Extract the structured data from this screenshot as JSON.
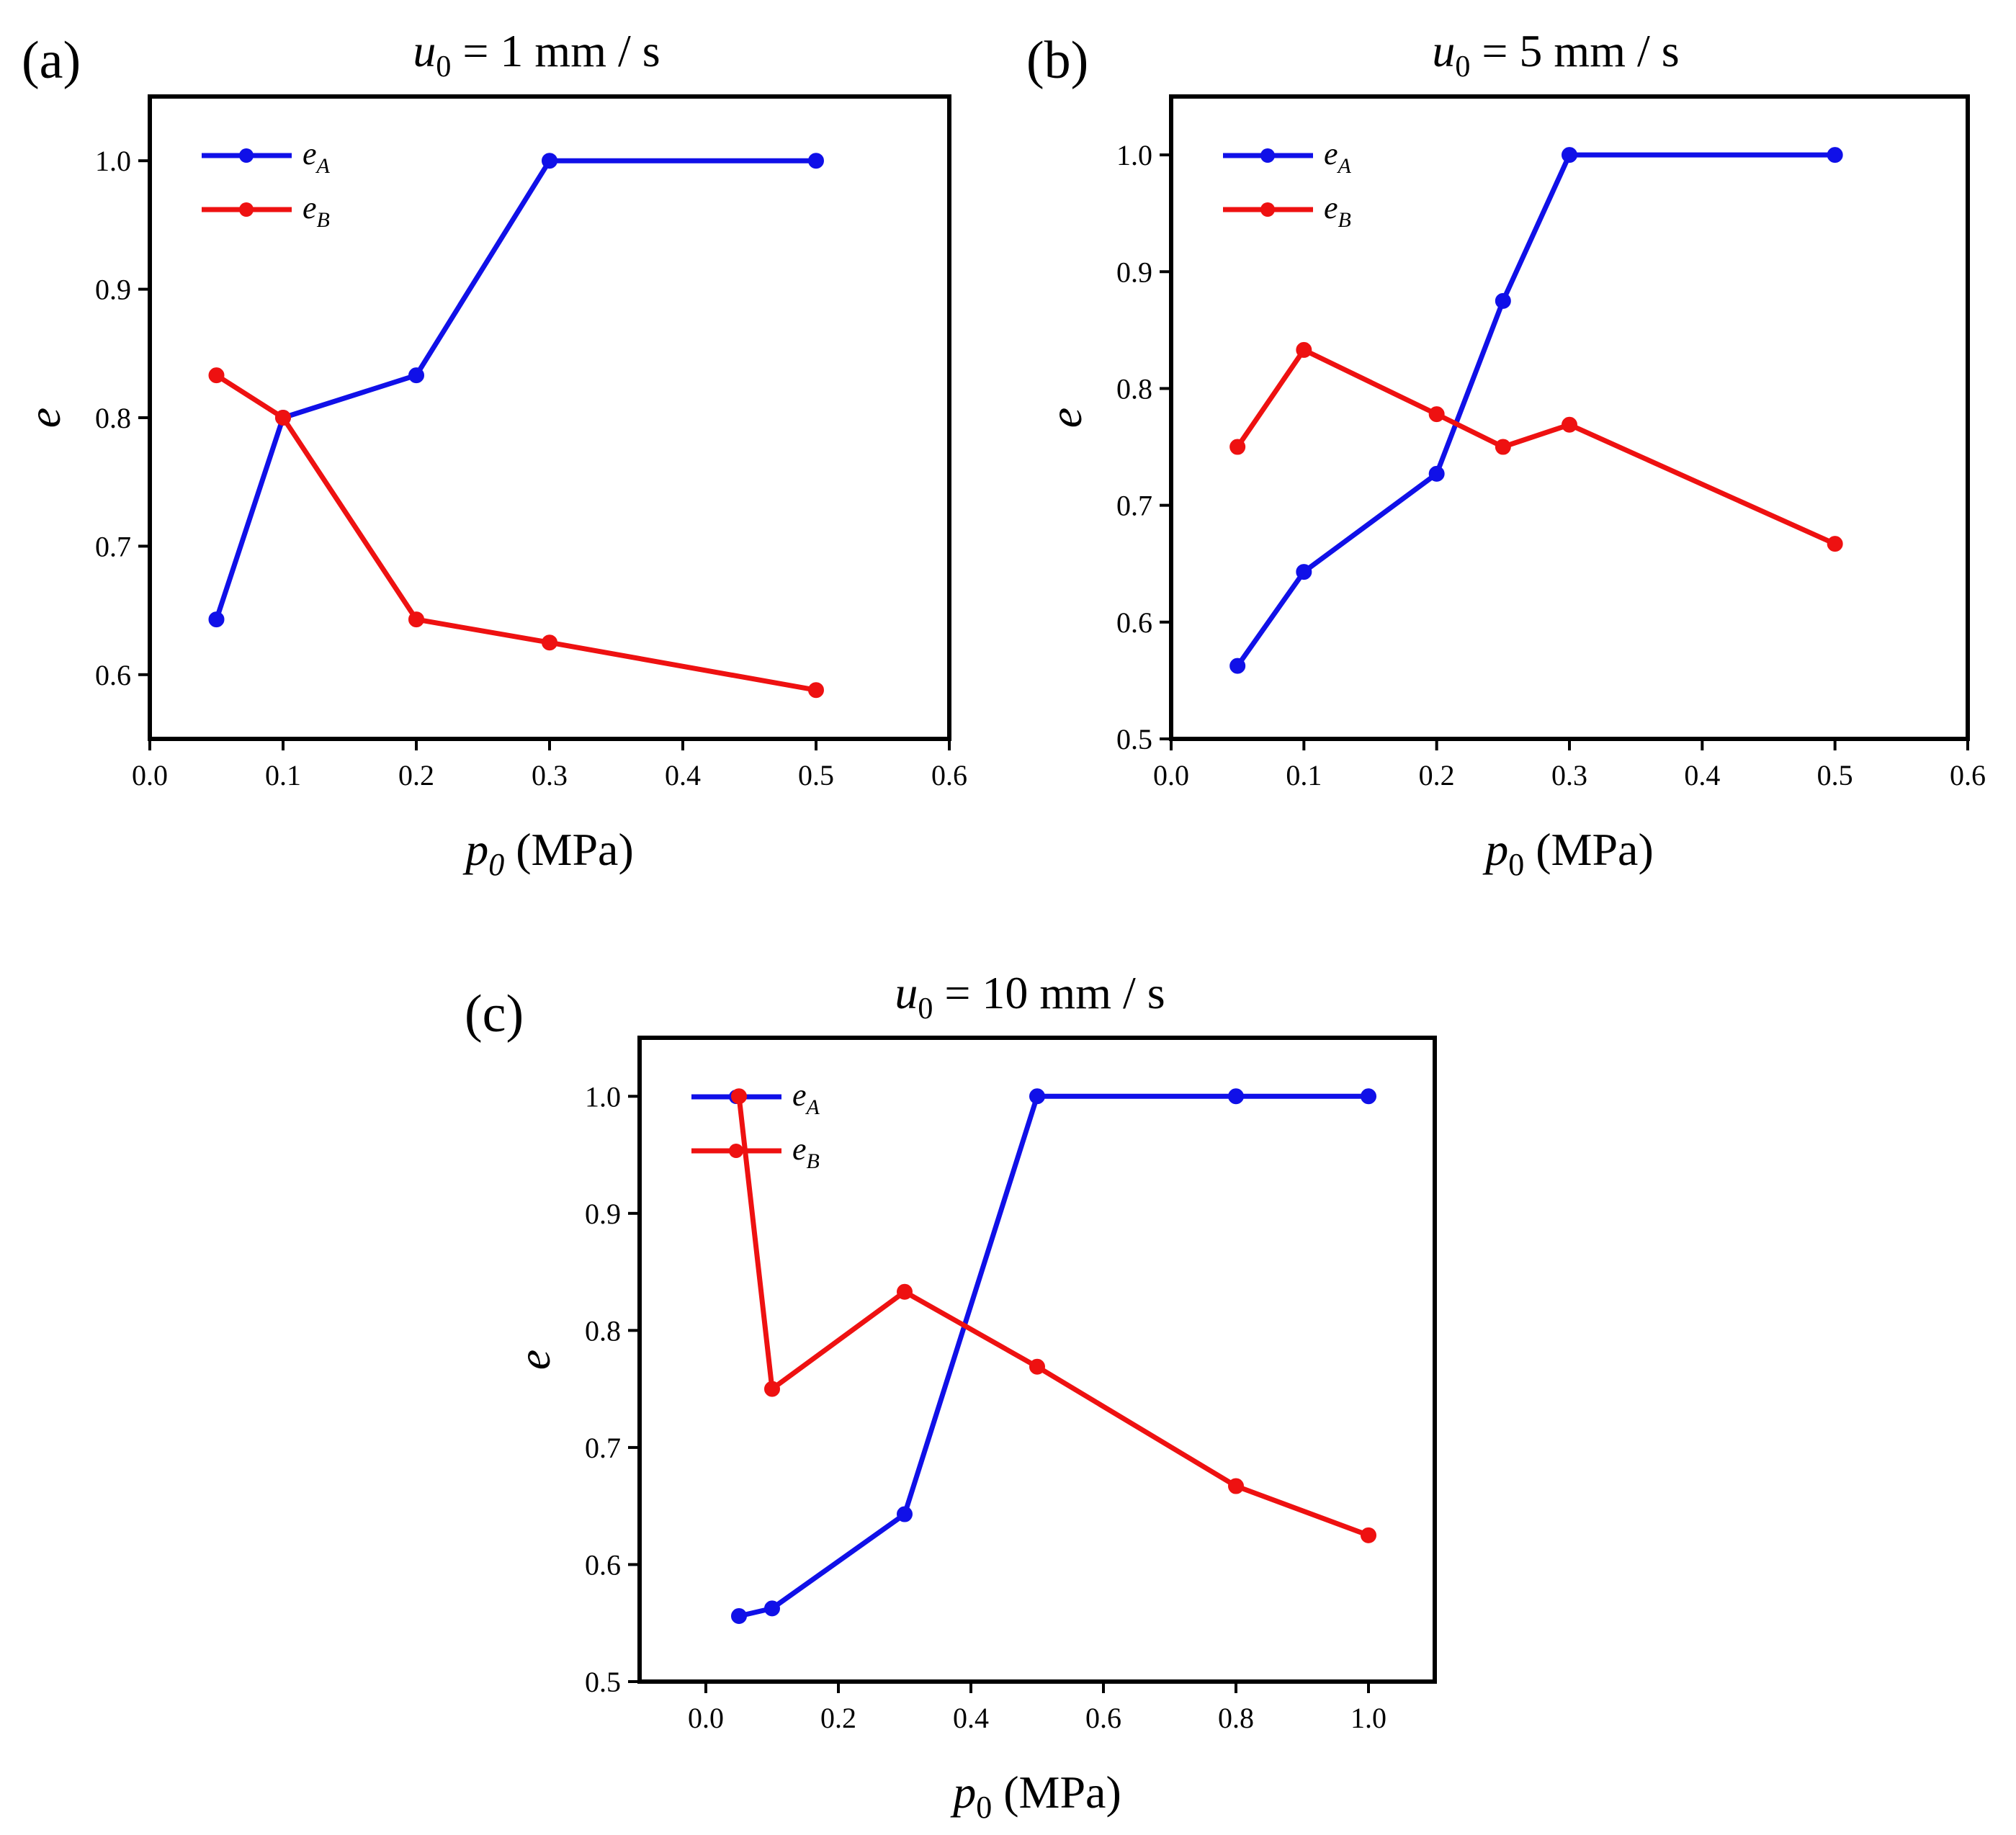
{
  "chart_data": [
    {
      "id": "a",
      "type": "line",
      "panel_label": "(a)",
      "title": {
        "var": "u",
        "sub": "0",
        "rest": " = 1 mm / s"
      },
      "xlabel": {
        "var": "p",
        "sub": "0",
        "rest": " (MPa)",
        "sub_italic": true
      },
      "ylabel": "e",
      "xlim": [
        0.0,
        0.6
      ],
      "ylim": [
        0.55,
        1.05
      ],
      "xticks": [
        "0.0",
        "0.1",
        "0.2",
        "0.3",
        "0.4",
        "0.5",
        "0.6"
      ],
      "yticks": [
        "0.6",
        "0.7",
        "0.8",
        "0.9",
        "1.0"
      ],
      "legend_position": "top-left",
      "series": [
        {
          "name": "e_A",
          "label_var": "e",
          "label_sub": "A",
          "color": "#1010E8",
          "x": [
            0.05,
            0.1,
            0.2,
            0.3,
            0.5
          ],
          "y": [
            0.643,
            0.8,
            0.833,
            1.0,
            1.0
          ]
        },
        {
          "name": "e_B",
          "label_var": "e",
          "label_sub": "B",
          "color": "#EE1111",
          "x": [
            0.05,
            0.1,
            0.2,
            0.3,
            0.5
          ],
          "y": [
            0.833,
            0.8,
            0.643,
            0.625,
            0.588
          ]
        }
      ]
    },
    {
      "id": "b",
      "type": "line",
      "panel_label": "(b)",
      "title": {
        "var": "u",
        "sub": "0",
        "rest": " = 5 mm / s"
      },
      "xlabel": {
        "var": "p",
        "sub": "0",
        "rest": " (MPa)",
        "sub_italic": false
      },
      "ylabel": "e",
      "xlim": [
        0.0,
        0.6
      ],
      "ylim": [
        0.5,
        1.05
      ],
      "xticks": [
        "0.0",
        "0.1",
        "0.2",
        "0.3",
        "0.4",
        "0.5",
        "0.6"
      ],
      "yticks": [
        "0.5",
        "0.6",
        "0.7",
        "0.8",
        "0.9",
        "1.0"
      ],
      "legend_position": "top-left",
      "series": [
        {
          "name": "e_A",
          "label_var": "e",
          "label_sub": "A",
          "color": "#1010E8",
          "x": [
            0.05,
            0.1,
            0.2,
            0.25,
            0.3,
            0.5
          ],
          "y": [
            0.5625,
            0.643,
            0.727,
            0.875,
            1.0,
            1.0
          ]
        },
        {
          "name": "e_B",
          "label_var": "e",
          "label_sub": "B",
          "color": "#EE1111",
          "x": [
            0.05,
            0.1,
            0.2,
            0.25,
            0.3,
            0.5
          ],
          "y": [
            0.75,
            0.833,
            0.778,
            0.75,
            0.769,
            0.667
          ]
        }
      ]
    },
    {
      "id": "c",
      "type": "line",
      "panel_label": "(c)",
      "title": {
        "var": "u",
        "sub": "0",
        "rest": " = 10 mm / s"
      },
      "xlabel": {
        "var": "p",
        "sub": "0",
        "rest": " (MPa)",
        "sub_italic": false
      },
      "ylabel": "e",
      "xlim": [
        -0.1,
        1.1
      ],
      "ylim": [
        0.5,
        1.05
      ],
      "xticks": [
        "0.0",
        "0.2",
        "0.4",
        "0.6",
        "0.8",
        "1.0"
      ],
      "yticks": [
        "0.5",
        "0.6",
        "0.7",
        "0.8",
        "0.9",
        "1.0"
      ],
      "legend_position": "top-left",
      "series": [
        {
          "name": "e_A",
          "label_var": "e",
          "label_sub": "A",
          "color": "#1010E8",
          "x": [
            0.05,
            0.1,
            0.3,
            0.5,
            0.8,
            1.0
          ],
          "y": [
            0.556,
            0.5625,
            0.643,
            1.0,
            1.0,
            1.0
          ]
        },
        {
          "name": "e_B",
          "label_var": "e",
          "label_sub": "B",
          "color": "#EE1111",
          "x": [
            0.05,
            0.1,
            0.3,
            0.5,
            0.8,
            1.0
          ],
          "y": [
            1.0,
            0.75,
            0.833,
            0.769,
            0.667,
            0.625
          ]
        }
      ]
    }
  ]
}
